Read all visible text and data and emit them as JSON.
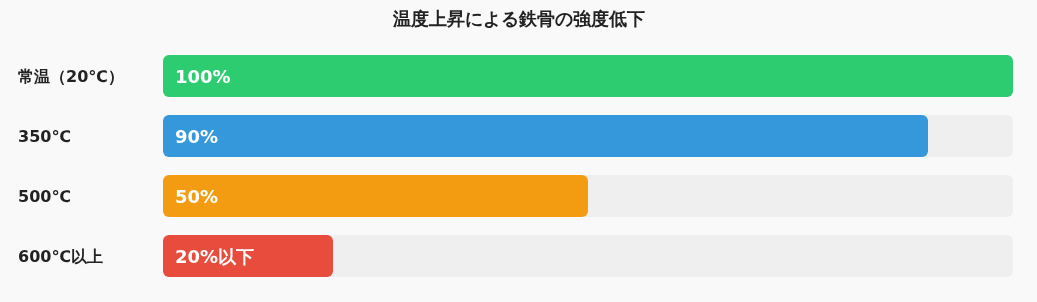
{
  "chart_data": {
    "type": "bar",
    "orientation": "horizontal",
    "title": "温度上昇による鉄骨の強度低下",
    "categories": [
      "常温（20℃）",
      "350℃",
      "500℃",
      "600℃以上"
    ],
    "values": [
      100,
      90,
      50,
      20
    ],
    "colors": [
      "#2ecc71",
      "#3498db",
      "#f39c12",
      "#e74c3c"
    ],
    "value_labels": [
      "100%",
      "90%",
      "50%",
      "20%以下"
    ],
    "xlim": [
      0,
      100
    ]
  }
}
